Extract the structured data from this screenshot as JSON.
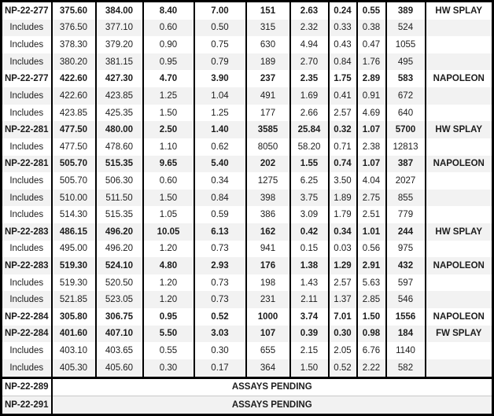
{
  "colors": {
    "border": "#000000",
    "text": "#1c1c1c",
    "row_alt_bg": "#f2f2f2",
    "row_bg": "#ffffff"
  },
  "table": {
    "rows": [
      {
        "bold": true,
        "cells": [
          "NP-22-277",
          "375.60",
          "384.00",
          "8.40",
          "7.00",
          "151",
          "2.63",
          "0.24",
          "0.55",
          "389",
          "HW SPLAY"
        ]
      },
      {
        "bold": false,
        "cells": [
          "Includes",
          "376.50",
          "377.10",
          "0.60",
          "0.50",
          "315",
          "2.32",
          "0.33",
          "0.38",
          "524",
          ""
        ]
      },
      {
        "bold": false,
        "cells": [
          "Includes",
          "378.30",
          "379.20",
          "0.90",
          "0.75",
          "630",
          "4.94",
          "0.43",
          "0.47",
          "1055",
          ""
        ]
      },
      {
        "bold": false,
        "cells": [
          "Includes",
          "380.20",
          "381.15",
          "0.95",
          "0.79",
          "189",
          "2.70",
          "0.84",
          "1.76",
          "495",
          ""
        ]
      },
      {
        "bold": true,
        "cells": [
          "NP-22-277",
          "422.60",
          "427.30",
          "4.70",
          "3.90",
          "237",
          "2.35",
          "1.75",
          "2.89",
          "583",
          "NAPOLEON"
        ]
      },
      {
        "bold": false,
        "cells": [
          "Includes",
          "422.60",
          "423.85",
          "1.25",
          "1.04",
          "491",
          "1.69",
          "0.41",
          "0.91",
          "672",
          ""
        ]
      },
      {
        "bold": false,
        "cells": [
          "Includes",
          "423.85",
          "425.35",
          "1.50",
          "1.25",
          "177",
          "2.66",
          "2.57",
          "4.69",
          "640",
          ""
        ]
      },
      {
        "bold": true,
        "cells": [
          "NP-22-281",
          "477.50",
          "480.00",
          "2.50",
          "1.40",
          "3585",
          "25.84",
          "0.32",
          "1.07",
          "5700",
          "HW SPLAY"
        ]
      },
      {
        "bold": false,
        "cells": [
          "Includes",
          "477.50",
          "478.60",
          "1.10",
          "0.62",
          "8050",
          "58.20",
          "0.71",
          "2.38",
          "12813",
          ""
        ]
      },
      {
        "bold": true,
        "cells": [
          "NP-22-281",
          "505.70",
          "515.35",
          "9.65",
          "5.40",
          "202",
          "1.55",
          "0.74",
          "1.07",
          "387",
          "NAPOLEON"
        ]
      },
      {
        "bold": false,
        "cells": [
          "Includes",
          "505.70",
          "506.30",
          "0.60",
          "0.34",
          "1275",
          "6.25",
          "3.50",
          "4.04",
          "2027",
          ""
        ]
      },
      {
        "bold": false,
        "cells": [
          "Includes",
          "510.00",
          "511.50",
          "1.50",
          "0.84",
          "398",
          "3.75",
          "1.89",
          "2.75",
          "855",
          ""
        ]
      },
      {
        "bold": false,
        "cells": [
          "Includes",
          "514.30",
          "515.35",
          "1.05",
          "0.59",
          "386",
          "3.09",
          "1.79",
          "2.51",
          "779",
          ""
        ]
      },
      {
        "bold": true,
        "cells": [
          "NP-22-283",
          "486.15",
          "496.20",
          "10.05",
          "6.13",
          "162",
          "0.42",
          "0.34",
          "1.01",
          "244",
          "HW SPLAY"
        ]
      },
      {
        "bold": false,
        "cells": [
          "Includes",
          "495.00",
          "496.20",
          "1.20",
          "0.73",
          "941",
          "0.15",
          "0.03",
          "0.56",
          "975",
          ""
        ]
      },
      {
        "bold": true,
        "cells": [
          "NP-22-283",
          "519.30",
          "524.10",
          "4.80",
          "2.93",
          "176",
          "1.38",
          "1.29",
          "2.91",
          "432",
          "NAPOLEON"
        ]
      },
      {
        "bold": false,
        "cells": [
          "Includes",
          "519.30",
          "520.50",
          "1.20",
          "0.73",
          "198",
          "1.43",
          "2.57",
          "5.63",
          "597",
          ""
        ]
      },
      {
        "bold": false,
        "cells": [
          "Includes",
          "521.85",
          "523.05",
          "1.20",
          "0.73",
          "231",
          "2.11",
          "1.37",
          "2.85",
          "546",
          ""
        ]
      },
      {
        "bold": true,
        "cells": [
          "NP-22-284",
          "305.80",
          "306.75",
          "0.95",
          "0.52",
          "1000",
          "3.74",
          "7.01",
          "1.50",
          "1556",
          "NAPOLEON"
        ]
      },
      {
        "bold": true,
        "cells": [
          "NP-22-284",
          "401.60",
          "407.10",
          "5.50",
          "3.03",
          "107",
          "0.39",
          "0.30",
          "0.98",
          "184",
          "FW SPLAY"
        ]
      },
      {
        "bold": false,
        "cells": [
          "Includes",
          "403.10",
          "403.65",
          "0.55",
          "0.30",
          "655",
          "2.15",
          "2.05",
          "6.76",
          "1140",
          ""
        ]
      },
      {
        "bold": false,
        "cells": [
          "Includes",
          "405.30",
          "405.60",
          "0.30",
          "0.17",
          "364",
          "1.50",
          "0.52",
          "2.22",
          "582",
          ""
        ]
      }
    ],
    "pending_rows": [
      {
        "hole": "NP-22-289",
        "status": "ASSAYS PENDING"
      },
      {
        "hole": "NP-22-291",
        "status": "ASSAYS PENDING"
      }
    ]
  }
}
